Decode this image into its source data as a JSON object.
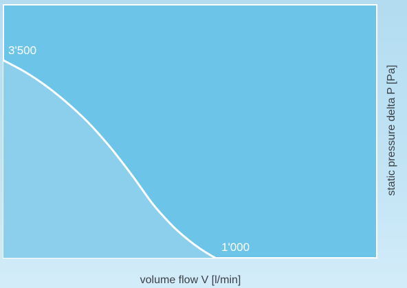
{
  "chart_data": {
    "type": "area",
    "xlabel": "volume flow V [l/min]",
    "ylabel": "static pressure delta P [Pa]",
    "y_annotation": "3'500",
    "x_annotation": "1'000",
    "series": [
      {
        "x": [
          0,
          100,
          200,
          300,
          400,
          500,
          600,
          700,
          750,
          800,
          850,
          900,
          950,
          1000
        ],
        "y": [
          3500,
          3300,
          3050,
          2750,
          2400,
          1980,
          1500,
          980,
          760,
          560,
          390,
          240,
          110,
          0
        ]
      }
    ],
    "xlim": [
      0,
      1000
    ],
    "ylim": [
      0,
      3500
    ],
    "grid": false,
    "legend": "none",
    "colors": {
      "plot_background": "#6cc4e9",
      "area_fill": "#8ccfec",
      "curve": "#ffffff",
      "frame": "#ffffff",
      "text_annotation": "#ffffff",
      "text_axis": "#3a3f44"
    }
  }
}
